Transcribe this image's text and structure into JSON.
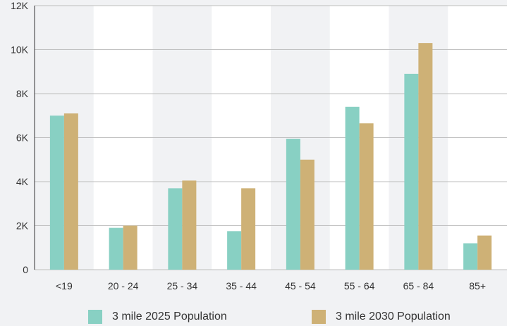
{
  "chart_data": {
    "type": "bar",
    "categories": [
      "<19",
      "20 - 24",
      "25 - 34",
      "35 - 44",
      "45 - 54",
      "55 - 64",
      "65 - 84",
      "85+"
    ],
    "series": [
      {
        "name": "3 mile 2025 Population",
        "color": "#88d0c3",
        "values": [
          7000,
          1900,
          3700,
          1750,
          5950,
          7400,
          8900,
          1200
        ]
      },
      {
        "name": "3 mile 2030 Population",
        "color": "#ceb176",
        "values": [
          7100,
          2000,
          4050,
          3700,
          5000,
          6650,
          10300,
          1550
        ]
      }
    ],
    "ylim": [
      0,
      12000
    ],
    "yticks": [
      0,
      2000,
      4000,
      6000,
      8000,
      10000,
      12000
    ],
    "ytick_labels": [
      "0",
      "2K",
      "4K",
      "6K",
      "8K",
      "10K",
      "12K"
    ],
    "grid": true,
    "legend_position": "bottom",
    "band_color": "#ffffff",
    "grid_color": "#bdbdbd"
  }
}
